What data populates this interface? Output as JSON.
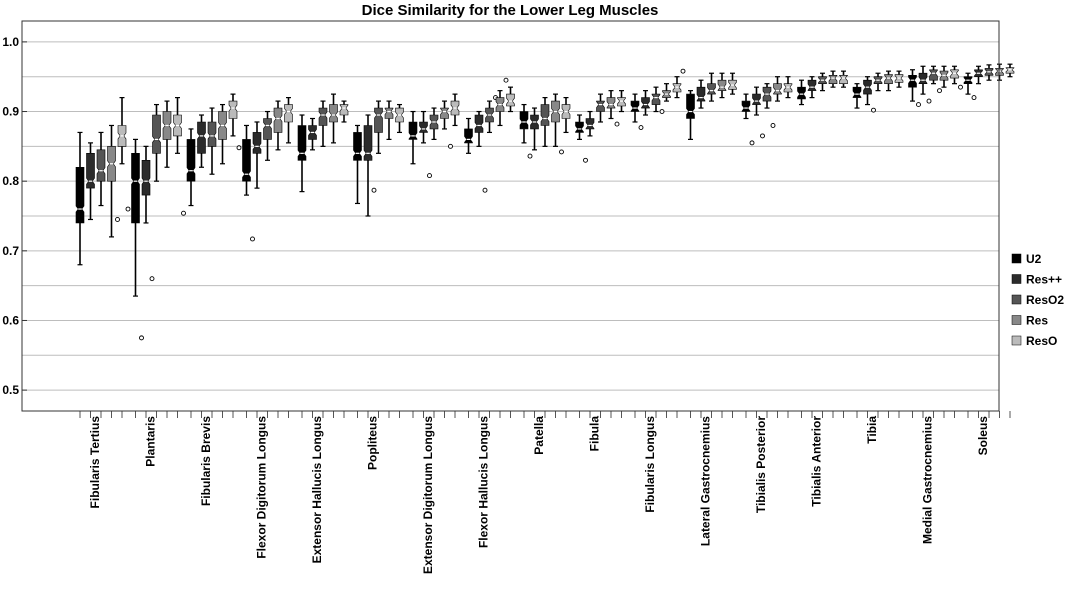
{
  "chart_data": {
    "type": "box",
    "title": "Dice Similarity for the Lower Leg Muscles",
    "xlabel": "",
    "ylabel": "",
    "ylim": [
      0.47,
      1.03
    ],
    "yticks": [
      "1.0",
      "0.9",
      "0.8",
      "0.7",
      "0.6",
      "0.5"
    ],
    "ytick_values": [
      1.0,
      0.9,
      0.8,
      0.7,
      0.6,
      0.5
    ],
    "grid": true,
    "legend_position": "right",
    "categories": [
      "Fibularis Tertius",
      "Plantaris",
      "Fibularis Brevis",
      "Flexor Digitorum Longus",
      "Extensor Hallucis Longus",
      "Popliteus",
      "Extensor Digitorum Longus",
      "Flexor Hallucis Longus",
      "Patella",
      "Fibula",
      "Fibularis Longus",
      "Lateral Gastrocnemius",
      "Tibialis Posterior",
      "Tibialis Anterior",
      "Tibia",
      "Medial Gastrocnemius",
      "Soleus"
    ],
    "series": [
      {
        "name": "U2",
        "color": "#000000",
        "boxes": [
          {
            "min": 0.68,
            "q1": 0.74,
            "med": 0.76,
            "q3": 0.82,
            "max": 0.87,
            "outliers": []
          },
          {
            "min": 0.635,
            "q1": 0.74,
            "med": 0.8,
            "q3": 0.84,
            "max": 0.86,
            "outliers": [
              0.575
            ]
          },
          {
            "min": 0.765,
            "q1": 0.8,
            "med": 0.815,
            "q3": 0.86,
            "max": 0.875,
            "outliers": []
          },
          {
            "min": 0.78,
            "q1": 0.8,
            "med": 0.81,
            "q3": 0.86,
            "max": 0.88,
            "outliers": [
              0.717
            ]
          },
          {
            "min": 0.785,
            "q1": 0.83,
            "med": 0.84,
            "q3": 0.88,
            "max": 0.895,
            "outliers": []
          },
          {
            "min": 0.768,
            "q1": 0.83,
            "med": 0.84,
            "q3": 0.87,
            "max": 0.88,
            "outliers": []
          },
          {
            "min": 0.825,
            "q1": 0.86,
            "med": 0.865,
            "q3": 0.885,
            "max": 0.9,
            "outliers": []
          },
          {
            "min": 0.84,
            "q1": 0.855,
            "med": 0.86,
            "q3": 0.875,
            "max": 0.89,
            "outliers": []
          },
          {
            "min": 0.855,
            "q1": 0.875,
            "med": 0.885,
            "q3": 0.9,
            "max": 0.91,
            "outliers": [
              0.836
            ]
          },
          {
            "min": 0.86,
            "q1": 0.87,
            "med": 0.875,
            "q3": 0.885,
            "max": 0.895,
            "outliers": [
              0.83
            ]
          },
          {
            "min": 0.885,
            "q1": 0.9,
            "med": 0.905,
            "q3": 0.915,
            "max": 0.925,
            "outliers": [
              0.877
            ]
          },
          {
            "min": 0.86,
            "q1": 0.89,
            "med": 0.9,
            "q3": 0.925,
            "max": 0.93,
            "outliers": []
          },
          {
            "min": 0.89,
            "q1": 0.9,
            "med": 0.905,
            "q3": 0.915,
            "max": 0.925,
            "outliers": [
              0.855
            ]
          },
          {
            "min": 0.91,
            "q1": 0.918,
            "med": 0.925,
            "q3": 0.935,
            "max": 0.945,
            "outliers": []
          },
          {
            "min": 0.905,
            "q1": 0.92,
            "med": 0.925,
            "q3": 0.935,
            "max": 0.94,
            "outliers": []
          },
          {
            "min": 0.915,
            "q1": 0.935,
            "med": 0.945,
            "q3": 0.952,
            "max": 0.96,
            "outliers": [
              0.91
            ]
          },
          {
            "min": 0.925,
            "q1": 0.94,
            "med": 0.945,
            "q3": 0.95,
            "max": 0.955,
            "outliers": [
              0.92
            ]
          }
        ]
      },
      {
        "name": "Res++",
        "color": "#2b2b2b",
        "boxes": [
          {
            "min": 0.745,
            "q1": 0.79,
            "med": 0.8,
            "q3": 0.84,
            "max": 0.855,
            "outliers": []
          },
          {
            "min": 0.74,
            "q1": 0.78,
            "med": 0.8,
            "q3": 0.83,
            "max": 0.85,
            "outliers": [
              0.66
            ]
          },
          {
            "min": 0.82,
            "q1": 0.84,
            "med": 0.865,
            "q3": 0.885,
            "max": 0.895,
            "outliers": []
          },
          {
            "min": 0.79,
            "q1": 0.84,
            "med": 0.85,
            "q3": 0.87,
            "max": 0.885,
            "outliers": []
          },
          {
            "min": 0.845,
            "q1": 0.86,
            "med": 0.87,
            "q3": 0.88,
            "max": 0.89,
            "outliers": []
          },
          {
            "min": 0.75,
            "q1": 0.83,
            "med": 0.84,
            "q3": 0.88,
            "max": 0.895,
            "outliers": [
              0.787
            ]
          },
          {
            "min": 0.855,
            "q1": 0.87,
            "med": 0.875,
            "q3": 0.885,
            "max": 0.9,
            "outliers": [
              0.808
            ]
          },
          {
            "min": 0.85,
            "q1": 0.87,
            "med": 0.88,
            "q3": 0.895,
            "max": 0.9,
            "outliers": [
              0.787
            ]
          },
          {
            "min": 0.845,
            "q1": 0.875,
            "med": 0.885,
            "q3": 0.895,
            "max": 0.905,
            "outliers": []
          },
          {
            "min": 0.865,
            "q1": 0.875,
            "med": 0.88,
            "q3": 0.89,
            "max": 0.9,
            "outliers": []
          },
          {
            "min": 0.895,
            "q1": 0.905,
            "med": 0.91,
            "q3": 0.92,
            "max": 0.93,
            "outliers": []
          },
          {
            "min": 0.905,
            "q1": 0.915,
            "med": 0.92,
            "q3": 0.935,
            "max": 0.945,
            "outliers": []
          },
          {
            "min": 0.895,
            "q1": 0.91,
            "med": 0.915,
            "q3": 0.925,
            "max": 0.935,
            "outliers": [
              0.865
            ]
          },
          {
            "min": 0.92,
            "q1": 0.93,
            "med": 0.935,
            "q3": 0.945,
            "max": 0.95,
            "outliers": []
          },
          {
            "min": 0.91,
            "q1": 0.925,
            "med": 0.935,
            "q3": 0.945,
            "max": 0.95,
            "outliers": [
              0.902
            ]
          },
          {
            "min": 0.925,
            "q1": 0.94,
            "med": 0.945,
            "q3": 0.955,
            "max": 0.965,
            "outliers": [
              0.915
            ]
          },
          {
            "min": 0.94,
            "q1": 0.95,
            "med": 0.955,
            "q3": 0.96,
            "max": 0.965,
            "outliers": []
          }
        ]
      },
      {
        "name": "ResO2",
        "color": "#555555",
        "boxes": [
          {
            "min": 0.765,
            "q1": 0.8,
            "med": 0.815,
            "q3": 0.845,
            "max": 0.87,
            "outliers": []
          },
          {
            "min": 0.8,
            "q1": 0.84,
            "med": 0.86,
            "q3": 0.895,
            "max": 0.91,
            "outliers": []
          },
          {
            "min": 0.81,
            "q1": 0.85,
            "med": 0.865,
            "q3": 0.885,
            "max": 0.905,
            "outliers": []
          },
          {
            "min": 0.83,
            "q1": 0.86,
            "med": 0.88,
            "q3": 0.89,
            "max": 0.9,
            "outliers": []
          },
          {
            "min": 0.85,
            "q1": 0.88,
            "med": 0.895,
            "q3": 0.905,
            "max": 0.915,
            "outliers": []
          },
          {
            "min": 0.84,
            "q1": 0.87,
            "med": 0.895,
            "q3": 0.905,
            "max": 0.915,
            "outliers": []
          },
          {
            "min": 0.86,
            "q1": 0.875,
            "med": 0.885,
            "q3": 0.895,
            "max": 0.905,
            "outliers": []
          },
          {
            "min": 0.87,
            "q1": 0.885,
            "med": 0.895,
            "q3": 0.905,
            "max": 0.915,
            "outliers": [
              0.92
            ]
          },
          {
            "min": 0.85,
            "q1": 0.88,
            "med": 0.89,
            "q3": 0.91,
            "max": 0.92,
            "outliers": []
          },
          {
            "min": 0.885,
            "q1": 0.9,
            "med": 0.91,
            "q3": 0.915,
            "max": 0.925,
            "outliers": []
          },
          {
            "min": 0.9,
            "q1": 0.91,
            "med": 0.92,
            "q3": 0.925,
            "max": 0.935,
            "outliers": [
              0.9
            ]
          },
          {
            "min": 0.915,
            "q1": 0.925,
            "med": 0.93,
            "q3": 0.94,
            "max": 0.955,
            "outliers": []
          },
          {
            "min": 0.905,
            "q1": 0.915,
            "med": 0.925,
            "q3": 0.935,
            "max": 0.94,
            "outliers": [
              0.88
            ]
          },
          {
            "min": 0.93,
            "q1": 0.94,
            "med": 0.945,
            "q3": 0.95,
            "max": 0.955,
            "outliers": []
          },
          {
            "min": 0.93,
            "q1": 0.94,
            "med": 0.945,
            "q3": 0.95,
            "max": 0.955,
            "outliers": []
          },
          {
            "min": 0.94,
            "q1": 0.945,
            "med": 0.955,
            "q3": 0.96,
            "max": 0.965,
            "outliers": [
              0.93
            ]
          },
          {
            "min": 0.945,
            "q1": 0.952,
            "med": 0.957,
            "q3": 0.962,
            "max": 0.967,
            "outliers": []
          }
        ]
      },
      {
        "name": "Res",
        "color": "#888888",
        "boxes": [
          {
            "min": 0.72,
            "q1": 0.8,
            "med": 0.825,
            "q3": 0.85,
            "max": 0.88,
            "outliers": [
              0.745
            ]
          },
          {
            "min": 0.82,
            "q1": 0.86,
            "med": 0.88,
            "q3": 0.9,
            "max": 0.915,
            "outliers": []
          },
          {
            "min": 0.825,
            "q1": 0.86,
            "med": 0.88,
            "q3": 0.9,
            "max": 0.91,
            "outliers": []
          },
          {
            "min": 0.845,
            "q1": 0.87,
            "med": 0.89,
            "q3": 0.905,
            "max": 0.915,
            "outliers": []
          },
          {
            "min": 0.855,
            "q1": 0.885,
            "med": 0.895,
            "q3": 0.91,
            "max": 0.925,
            "outliers": []
          },
          {
            "min": 0.86,
            "q1": 0.89,
            "med": 0.9,
            "q3": 0.905,
            "max": 0.915,
            "outliers": []
          },
          {
            "min": 0.875,
            "q1": 0.89,
            "med": 0.9,
            "q3": 0.905,
            "max": 0.915,
            "outliers": [
              0.85
            ]
          },
          {
            "min": 0.88,
            "q1": 0.9,
            "med": 0.91,
            "q3": 0.92,
            "max": 0.93,
            "outliers": [
              0.945
            ]
          },
          {
            "min": 0.85,
            "q1": 0.885,
            "med": 0.9,
            "q3": 0.915,
            "max": 0.925,
            "outliers": [
              0.842
            ]
          },
          {
            "min": 0.89,
            "q1": 0.905,
            "med": 0.91,
            "q3": 0.92,
            "max": 0.93,
            "outliers": [
              0.882
            ]
          },
          {
            "min": 0.915,
            "q1": 0.92,
            "med": 0.925,
            "q3": 0.93,
            "max": 0.94,
            "outliers": []
          },
          {
            "min": 0.92,
            "q1": 0.93,
            "med": 0.935,
            "q3": 0.945,
            "max": 0.955,
            "outliers": []
          },
          {
            "min": 0.915,
            "q1": 0.925,
            "med": 0.93,
            "q3": 0.94,
            "max": 0.95,
            "outliers": []
          },
          {
            "min": 0.935,
            "q1": 0.94,
            "med": 0.948,
            "q3": 0.952,
            "max": 0.958,
            "outliers": []
          },
          {
            "min": 0.93,
            "q1": 0.94,
            "med": 0.948,
            "q3": 0.953,
            "max": 0.958,
            "outliers": []
          },
          {
            "min": 0.935,
            "q1": 0.945,
            "med": 0.952,
            "q3": 0.958,
            "max": 0.965,
            "outliers": []
          },
          {
            "min": 0.945,
            "q1": 0.952,
            "med": 0.958,
            "q3": 0.962,
            "max": 0.968,
            "outliers": []
          }
        ]
      },
      {
        "name": "ResO",
        "color": "#bbbbbb",
        "boxes": [
          {
            "min": 0.825,
            "q1": 0.85,
            "med": 0.865,
            "q3": 0.88,
            "max": 0.92,
            "outliers": [
              0.76
            ]
          },
          {
            "min": 0.84,
            "q1": 0.865,
            "med": 0.88,
            "q3": 0.895,
            "max": 0.92,
            "outliers": [
              0.754
            ]
          },
          {
            "min": 0.865,
            "q1": 0.89,
            "med": 0.905,
            "q3": 0.915,
            "max": 0.925,
            "outliers": [
              0.848
            ]
          },
          {
            "min": 0.855,
            "q1": 0.885,
            "med": 0.9,
            "q3": 0.91,
            "max": 0.92,
            "outliers": []
          },
          {
            "min": 0.885,
            "q1": 0.895,
            "med": 0.905,
            "q3": 0.91,
            "max": 0.915,
            "outliers": []
          },
          {
            "min": 0.87,
            "q1": 0.885,
            "med": 0.895,
            "q3": 0.905,
            "max": 0.91,
            "outliers": []
          },
          {
            "min": 0.88,
            "q1": 0.895,
            "med": 0.905,
            "q3": 0.915,
            "max": 0.925,
            "outliers": []
          },
          {
            "min": 0.9,
            "q1": 0.908,
            "med": 0.915,
            "q3": 0.925,
            "max": 0.935,
            "outliers": []
          },
          {
            "min": 0.87,
            "q1": 0.89,
            "med": 0.9,
            "q3": 0.91,
            "max": 0.92,
            "outliers": []
          },
          {
            "min": 0.9,
            "q1": 0.908,
            "med": 0.915,
            "q3": 0.92,
            "max": 0.93,
            "outliers": []
          },
          {
            "min": 0.92,
            "q1": 0.928,
            "med": 0.935,
            "q3": 0.94,
            "max": 0.95,
            "outliers": [
              0.958
            ]
          },
          {
            "min": 0.925,
            "q1": 0.932,
            "med": 0.938,
            "q3": 0.945,
            "max": 0.955,
            "outliers": []
          },
          {
            "min": 0.92,
            "q1": 0.928,
            "med": 0.935,
            "q3": 0.94,
            "max": 0.95,
            "outliers": []
          },
          {
            "min": 0.935,
            "q1": 0.94,
            "med": 0.948,
            "q3": 0.952,
            "max": 0.958,
            "outliers": []
          },
          {
            "min": 0.935,
            "q1": 0.942,
            "med": 0.948,
            "q3": 0.953,
            "max": 0.958,
            "outliers": []
          },
          {
            "min": 0.94,
            "q1": 0.948,
            "med": 0.955,
            "q3": 0.96,
            "max": 0.965,
            "outliers": [
              0.935
            ]
          },
          {
            "min": 0.95,
            "q1": 0.955,
            "med": 0.96,
            "q3": 0.963,
            "max": 0.968,
            "outliers": []
          }
        ]
      }
    ]
  }
}
